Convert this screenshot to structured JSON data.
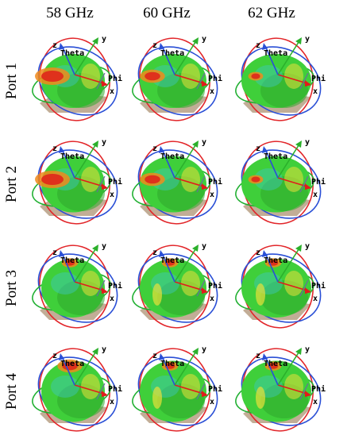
{
  "figure": {
    "columns": [
      "58 GHz",
      "60 GHz",
      "62 GHz"
    ],
    "rows": [
      "Port 1",
      "Port 2",
      "Port 3",
      "Port 4"
    ],
    "axis_labels": {
      "theta": "Theta",
      "phi": "Phi",
      "x": "x",
      "y": "y",
      "z": "z"
    },
    "colors": {
      "body": "#3fcf3a",
      "body_shade": "#2fa72c",
      "hot": "#e0261b",
      "warm": "#f08a1c",
      "mild": "#e8e03a",
      "cool": "#3ec7c0",
      "theta_ring": "#e2262a",
      "phi_ring": "#2a4fd6",
      "green_ring": "#22b033",
      "base_plate": "#b79f84",
      "x_arrow": "#e01c1c",
      "y_arrow": "#2bb02b",
      "z_arrow": "#2a4fd6"
    }
  }
}
